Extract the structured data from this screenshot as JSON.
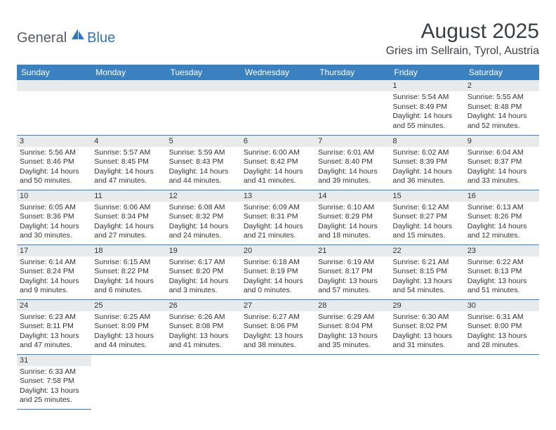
{
  "logo": {
    "text1": "General",
    "text2": "Blue"
  },
  "title": "August 2025",
  "location": "Gries im Sellrain, Tyrol, Austria",
  "colors": {
    "header_bg": "#3b81bf",
    "header_fg": "#ffffff",
    "daynum_bg": "#e9eaeb",
    "border": "#3b81bf",
    "logo_gray": "#555c63",
    "logo_blue": "#2e77b8"
  },
  "day_headers": [
    "Sunday",
    "Monday",
    "Tuesday",
    "Wednesday",
    "Thursday",
    "Friday",
    "Saturday"
  ],
  "weeks": [
    [
      null,
      null,
      null,
      null,
      null,
      {
        "n": "1",
        "sr": "Sunrise: 5:54 AM",
        "ss": "Sunset: 8:49 PM",
        "d1": "Daylight: 14 hours",
        "d2": "and 55 minutes."
      },
      {
        "n": "2",
        "sr": "Sunrise: 5:55 AM",
        "ss": "Sunset: 8:48 PM",
        "d1": "Daylight: 14 hours",
        "d2": "and 52 minutes."
      }
    ],
    [
      {
        "n": "3",
        "sr": "Sunrise: 5:56 AM",
        "ss": "Sunset: 8:46 PM",
        "d1": "Daylight: 14 hours",
        "d2": "and 50 minutes."
      },
      {
        "n": "4",
        "sr": "Sunrise: 5:57 AM",
        "ss": "Sunset: 8:45 PM",
        "d1": "Daylight: 14 hours",
        "d2": "and 47 minutes."
      },
      {
        "n": "5",
        "sr": "Sunrise: 5:59 AM",
        "ss": "Sunset: 8:43 PM",
        "d1": "Daylight: 14 hours",
        "d2": "and 44 minutes."
      },
      {
        "n": "6",
        "sr": "Sunrise: 6:00 AM",
        "ss": "Sunset: 8:42 PM",
        "d1": "Daylight: 14 hours",
        "d2": "and 41 minutes."
      },
      {
        "n": "7",
        "sr": "Sunrise: 6:01 AM",
        "ss": "Sunset: 8:40 PM",
        "d1": "Daylight: 14 hours",
        "d2": "and 39 minutes."
      },
      {
        "n": "8",
        "sr": "Sunrise: 6:02 AM",
        "ss": "Sunset: 8:39 PM",
        "d1": "Daylight: 14 hours",
        "d2": "and 36 minutes."
      },
      {
        "n": "9",
        "sr": "Sunrise: 6:04 AM",
        "ss": "Sunset: 8:37 PM",
        "d1": "Daylight: 14 hours",
        "d2": "and 33 minutes."
      }
    ],
    [
      {
        "n": "10",
        "sr": "Sunrise: 6:05 AM",
        "ss": "Sunset: 8:36 PM",
        "d1": "Daylight: 14 hours",
        "d2": "and 30 minutes."
      },
      {
        "n": "11",
        "sr": "Sunrise: 6:06 AM",
        "ss": "Sunset: 8:34 PM",
        "d1": "Daylight: 14 hours",
        "d2": "and 27 minutes."
      },
      {
        "n": "12",
        "sr": "Sunrise: 6:08 AM",
        "ss": "Sunset: 8:32 PM",
        "d1": "Daylight: 14 hours",
        "d2": "and 24 minutes."
      },
      {
        "n": "13",
        "sr": "Sunrise: 6:09 AM",
        "ss": "Sunset: 8:31 PM",
        "d1": "Daylight: 14 hours",
        "d2": "and 21 minutes."
      },
      {
        "n": "14",
        "sr": "Sunrise: 6:10 AM",
        "ss": "Sunset: 8:29 PM",
        "d1": "Daylight: 14 hours",
        "d2": "and 18 minutes."
      },
      {
        "n": "15",
        "sr": "Sunrise: 6:12 AM",
        "ss": "Sunset: 8:27 PM",
        "d1": "Daylight: 14 hours",
        "d2": "and 15 minutes."
      },
      {
        "n": "16",
        "sr": "Sunrise: 6:13 AM",
        "ss": "Sunset: 8:26 PM",
        "d1": "Daylight: 14 hours",
        "d2": "and 12 minutes."
      }
    ],
    [
      {
        "n": "17",
        "sr": "Sunrise: 6:14 AM",
        "ss": "Sunset: 8:24 PM",
        "d1": "Daylight: 14 hours",
        "d2": "and 9 minutes."
      },
      {
        "n": "18",
        "sr": "Sunrise: 6:15 AM",
        "ss": "Sunset: 8:22 PM",
        "d1": "Daylight: 14 hours",
        "d2": "and 6 minutes."
      },
      {
        "n": "19",
        "sr": "Sunrise: 6:17 AM",
        "ss": "Sunset: 8:20 PM",
        "d1": "Daylight: 14 hours",
        "d2": "and 3 minutes."
      },
      {
        "n": "20",
        "sr": "Sunrise: 6:18 AM",
        "ss": "Sunset: 8:19 PM",
        "d1": "Daylight: 14 hours",
        "d2": "and 0 minutes."
      },
      {
        "n": "21",
        "sr": "Sunrise: 6:19 AM",
        "ss": "Sunset: 8:17 PM",
        "d1": "Daylight: 13 hours",
        "d2": "and 57 minutes."
      },
      {
        "n": "22",
        "sr": "Sunrise: 6:21 AM",
        "ss": "Sunset: 8:15 PM",
        "d1": "Daylight: 13 hours",
        "d2": "and 54 minutes."
      },
      {
        "n": "23",
        "sr": "Sunrise: 6:22 AM",
        "ss": "Sunset: 8:13 PM",
        "d1": "Daylight: 13 hours",
        "d2": "and 51 minutes."
      }
    ],
    [
      {
        "n": "24",
        "sr": "Sunrise: 6:23 AM",
        "ss": "Sunset: 8:11 PM",
        "d1": "Daylight: 13 hours",
        "d2": "and 47 minutes."
      },
      {
        "n": "25",
        "sr": "Sunrise: 6:25 AM",
        "ss": "Sunset: 8:09 PM",
        "d1": "Daylight: 13 hours",
        "d2": "and 44 minutes."
      },
      {
        "n": "26",
        "sr": "Sunrise: 6:26 AM",
        "ss": "Sunset: 8:08 PM",
        "d1": "Daylight: 13 hours",
        "d2": "and 41 minutes."
      },
      {
        "n": "27",
        "sr": "Sunrise: 6:27 AM",
        "ss": "Sunset: 8:06 PM",
        "d1": "Daylight: 13 hours",
        "d2": "and 38 minutes."
      },
      {
        "n": "28",
        "sr": "Sunrise: 6:29 AM",
        "ss": "Sunset: 8:04 PM",
        "d1": "Daylight: 13 hours",
        "d2": "and 35 minutes."
      },
      {
        "n": "29",
        "sr": "Sunrise: 6:30 AM",
        "ss": "Sunset: 8:02 PM",
        "d1": "Daylight: 13 hours",
        "d2": "and 31 minutes."
      },
      {
        "n": "30",
        "sr": "Sunrise: 6:31 AM",
        "ss": "Sunset: 8:00 PM",
        "d1": "Daylight: 13 hours",
        "d2": "and 28 minutes."
      }
    ],
    [
      {
        "n": "31",
        "sr": "Sunrise: 6:33 AM",
        "ss": "Sunset: 7:58 PM",
        "d1": "Daylight: 13 hours",
        "d2": "and 25 minutes."
      },
      null,
      null,
      null,
      null,
      null,
      null
    ]
  ]
}
